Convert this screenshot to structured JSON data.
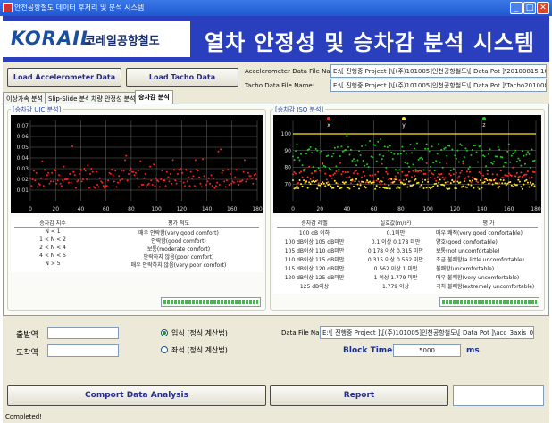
{
  "window": {
    "title": "안전공항철도 데이터 후처리 및 분석 시스템",
    "buttons": [
      "_",
      "□",
      "✕"
    ]
  },
  "banner": {
    "logo": "KORAIL",
    "logo_sub": "코레일공항철도",
    "title": "열차 안정성 및 승차감 분석 시스템"
  },
  "toolbar": {
    "load_accel_label": "Load Accelerometer Data",
    "load_tacho_label": "Load Tacho Data",
    "accel_file_label": "Accelerometer Data File Name:",
    "accel_file_value": "E:\\[ 진행중 Project ]\\[(주)101005]인천공항철도\\[ Data Pot ]\\20100815 105",
    "tacho_file_label": "Tacho Data File Name:",
    "tacho_file_value": "E:\\[ 진행중 Project ]\\[(주)101005]인천공항철도\\[ Data Pot ]\\Tacho2010081"
  },
  "tabs": [
    "이상가속 분석",
    "Slip-Slide 분석",
    "차량 안정성 분석",
    "승차감 분석"
  ],
  "left_panel": {
    "title": "[승차감 UIC 분석]",
    "y_ticks": [
      "0.07",
      "0.06",
      "0.05",
      "0.04",
      "0.03",
      "0.02",
      "0.01"
    ],
    "x_ticks": [
      "0",
      "20",
      "40",
      "60",
      "80",
      "100",
      "120",
      "140",
      "160",
      "180"
    ],
    "table_header": [
      "승차감 지수",
      "평가 척도"
    ],
    "table_rows": [
      [
        "N < 1",
        "매우 안락함(very good comfort)"
      ],
      [
        "1 < N < 2",
        "안락함(good comfort)"
      ],
      [
        "2 < N < 4",
        "보통(moderate comfort)"
      ],
      [
        "4 < N < 5",
        "안락하지 않음(poor comfort)"
      ],
      [
        "N > 5",
        "매우 안락하지 않음(very poor comfort)"
      ]
    ]
  },
  "right_panel": {
    "title": "[승차감 ISO 분석]",
    "axis_markers": [
      "x",
      "y",
      "z"
    ],
    "y_ticks": [
      "100",
      "90",
      "80",
      "70"
    ],
    "x_ticks": [
      "0",
      "20",
      "40",
      "60",
      "80",
      "100",
      "120",
      "140",
      "160",
      "180"
    ],
    "table_header": [
      "승차감 레벨",
      "실효값(m/s²)",
      "평 가"
    ],
    "table_rows": [
      [
        "100 dB 이하",
        "0.1미만",
        "매우 쾌적(very good comfortable)"
      ],
      [
        "100 dB이상 105 dB미만",
        "0.1 이상 0.178 미만",
        "양호(good comfortable)"
      ],
      [
        "105 dB이상 110 dB미만",
        "0.178 이상 0.315 미만",
        "보통(not uncomfortable)"
      ],
      [
        "110 dB이상 115 dB미만",
        "0.315 이상 0.562 미만",
        "조금 불쾌함(a little uncomfortable)"
      ],
      [
        "115 dB이상 120 dB미만",
        "0.562 이상 1 미만",
        "불쾌함(uncomfortable)"
      ],
      [
        "120 dB이상 125 dB미만",
        "1 이상 1.779 미만",
        "매우 불쾌함(very uncomfortable)"
      ],
      [
        "125 dB이상",
        "1.779 이상",
        "극히 불쾌함(extremely uncomfortable)"
      ]
    ]
  },
  "controls": {
    "departure_label": "출발역",
    "departure_value": "",
    "arrival_label": "도착역",
    "arrival_value": "",
    "radio_standing": "입식 (정식 계산법)",
    "radio_seated": "좌석 (정식 계산법)",
    "data_file_label": "Data File Name",
    "data_file_value": "E:\\[ 진행중 Project ]\\[(주)101005]인천공항철도\\[ Data Pot ]\\acc_3axis_0126",
    "block_time_label": "Block Time :",
    "block_time_value": "5000",
    "block_time_unit": "ms"
  },
  "buttons": {
    "comport": "Comport Data Analysis",
    "report": "Report"
  },
  "status": {
    "text": "Completed!"
  },
  "chart_data": [
    {
      "type": "scatter",
      "title": "[승차감 UIC 분석]",
      "xlim": [
        0,
        180
      ],
      "ylim": [
        0,
        0.075
      ],
      "series": [
        {
          "color": "#ff1e1e",
          "x": [],
          "y": []
        }
      ]
    },
    {
      "type": "scatter",
      "title": "[승차감 ISO 분석]",
      "xlim": [
        0,
        180
      ],
      "ylim": [
        60,
        108
      ],
      "reference_line": 100,
      "series": [
        {
          "name": "x",
          "color": "#ff2a2a",
          "x": [],
          "y": []
        },
        {
          "name": "y",
          "color": "#ffe81e",
          "x": [],
          "y": []
        },
        {
          "name": "z",
          "color": "#1ec81e",
          "x": [],
          "y": []
        }
      ]
    }
  ]
}
